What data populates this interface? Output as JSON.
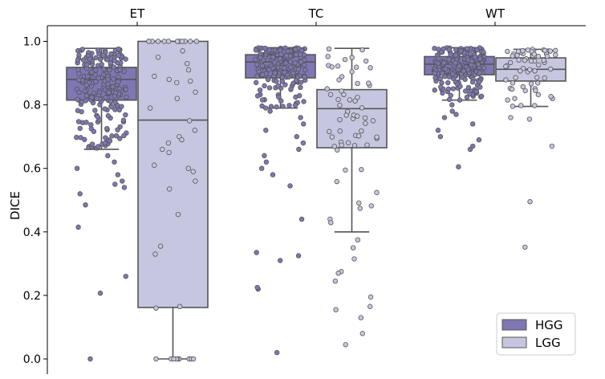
{
  "chart_data": {
    "type": "box",
    "categories": [
      "ET",
      "TC",
      "WT"
    ],
    "ylabel": "DICE",
    "ylim": [
      -0.05,
      1.05
    ],
    "yticks": [
      "0.0",
      "0.2",
      "0.4",
      "0.6",
      "0.8",
      "1.0"
    ],
    "ytick_values": [
      0.0,
      0.2,
      0.4,
      0.6,
      0.8,
      1.0
    ],
    "legend_position": "bottom-right",
    "series": [
      {
        "name": "HGG",
        "color": "#7e77b3",
        "boxes": [
          {
            "category": "ET",
            "whisker_low": 0.66,
            "q1": 0.815,
            "median": 0.88,
            "q3": 0.918,
            "whisker_high": 0.978,
            "outliers": [
              0.64,
              0.62,
              0.6,
              0.58,
              0.56,
              0.55,
              0.54,
              0.52,
              0.485,
              0.415,
              0.26,
              0.207,
              0.0
            ]
          },
          {
            "category": "TC",
            "whisker_low": 0.79,
            "q1": 0.885,
            "median": 0.935,
            "q3": 0.958,
            "whisker_high": 0.98,
            "outliers": [
              0.78,
              0.76,
              0.74,
              0.72,
              0.7,
              0.68,
              0.66,
              0.64,
              0.62,
              0.6,
              0.58,
              0.545,
              0.44,
              0.335,
              0.325,
              0.31,
              0.22,
              0.225,
              0.02
            ]
          },
          {
            "category": "WT",
            "whisker_low": 0.815,
            "q1": 0.895,
            "median": 0.928,
            "q3": 0.952,
            "whisker_high": 0.98,
            "outliers": [
              0.8,
              0.78,
              0.77,
              0.76,
              0.74,
              0.72,
              0.7,
              0.69,
              0.67,
              0.66,
              0.605
            ]
          }
        ]
      },
      {
        "name": "LGG",
        "color": "#c7c6e0",
        "boxes": [
          {
            "category": "ET",
            "whisker_low": 0.0,
            "q1": 0.162,
            "median": 0.752,
            "q3": 1.0,
            "whisker_high": 1.0,
            "outliers": []
          },
          {
            "category": "TC",
            "whisker_low": 0.4,
            "q1": 0.665,
            "median": 0.788,
            "q3": 0.848,
            "whisker_high": 0.978,
            "outliers": [
              0.375,
              0.35,
              0.315,
              0.275,
              0.27,
              0.245,
              0.195,
              0.165,
              0.155,
              0.13,
              0.08,
              0.045
            ]
          },
          {
            "category": "WT",
            "whisker_low": 0.795,
            "q1": 0.875,
            "median": 0.912,
            "q3": 0.948,
            "whisker_high": 0.975,
            "outliers": [
              0.76,
              0.755,
              0.67,
              0.495,
              0.352
            ]
          }
        ]
      }
    ]
  }
}
